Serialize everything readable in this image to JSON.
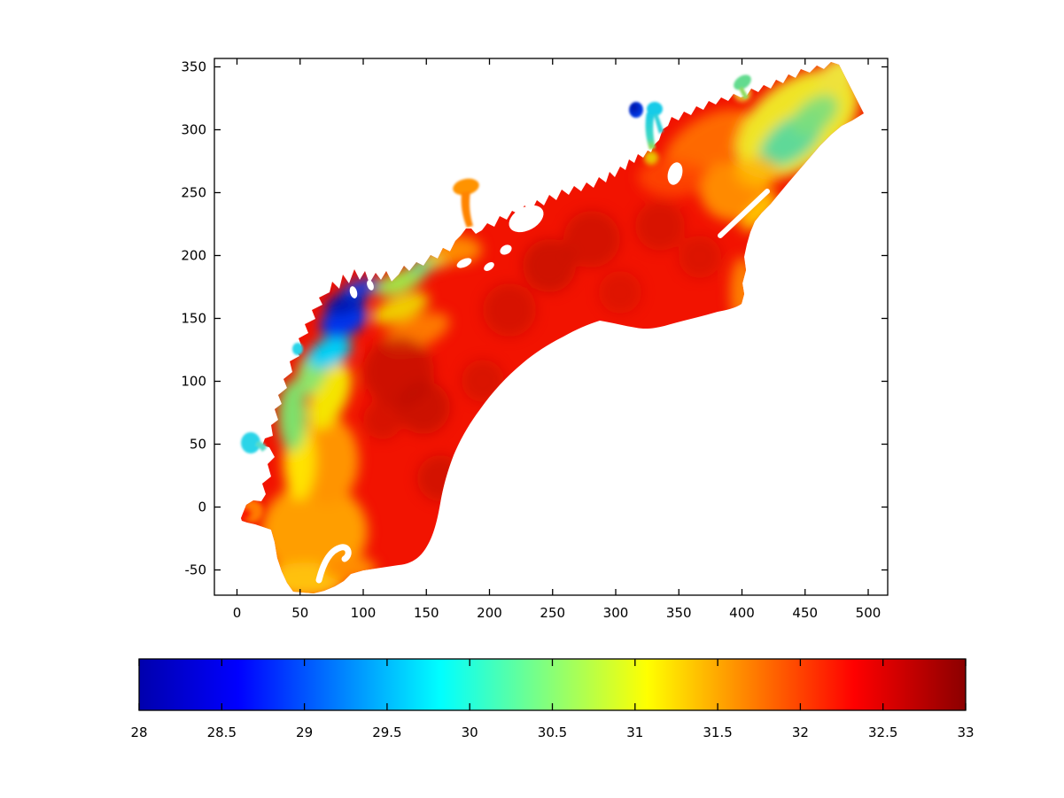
{
  "figure": {
    "background": "#ffffff",
    "kind": "matlab-style filled contour map with horizontal colorbar"
  },
  "chart_data": {
    "type": "heatmap",
    "title": "",
    "xlabel": "",
    "ylabel": "",
    "grid": false,
    "xlim": [
      -18,
      515
    ],
    "ylim": [
      -70,
      356
    ],
    "x_tick_labels": [
      "0",
      "50",
      "100",
      "150",
      "200",
      "250",
      "300",
      "350",
      "400",
      "450",
      "500"
    ],
    "y_tick_labels": [
      "350",
      "300",
      "250",
      "200",
      "150",
      "100",
      "50",
      "0",
      "-50"
    ],
    "colormap": "jet",
    "colorbar": {
      "orientation": "horizontal",
      "min": 28,
      "max": 33,
      "tick_labels": [
        "28",
        "28.5",
        "29",
        "29.5",
        "30",
        "30.5",
        "31",
        "31.5",
        "32",
        "32.5",
        "33"
      ],
      "gradient_stops": [
        {
          "pos": 0.0,
          "color": "#0000AD"
        },
        {
          "pos": 0.12,
          "color": "#0000FF"
        },
        {
          "pos": 0.365,
          "color": "#00FFFF"
        },
        {
          "pos": 0.615,
          "color": "#FFFF00"
        },
        {
          "pos": 0.865,
          "color": "#FF0000"
        },
        {
          "pos": 1.0,
          "color": "#8B0000"
        }
      ]
    },
    "field_samples": [
      {
        "x": 82,
        "y": 153,
        "value": 28.4,
        "note": "dark blue patch on NW shore"
      },
      {
        "x": 70,
        "y": 128,
        "value": 29.6,
        "note": "cyan fringe below blue patch"
      },
      {
        "x": 55,
        "y": 95,
        "value": 30.3,
        "note": "green band along west shore"
      },
      {
        "x": 50,
        "y": 62,
        "value": 31.0,
        "note": "yellow band along west shore"
      },
      {
        "x": 10,
        "y": 50,
        "value": 29.9,
        "note": "isolated cyan pond on west shore"
      },
      {
        "x": 6,
        "y": -4,
        "value": 32.3,
        "note": "small bright red spot at SW tip"
      },
      {
        "x": 55,
        "y": -55,
        "value": 31.4,
        "note": "orange-yellow lower lobe"
      },
      {
        "x": 130,
        "y": 110,
        "value": 32.8,
        "note": "dark red core of west basin"
      },
      {
        "x": 150,
        "y": 80,
        "value": 32.7,
        "note": "dark red core"
      },
      {
        "x": 250,
        "y": 175,
        "value": 32.5,
        "note": "red central basin"
      },
      {
        "x": 300,
        "y": 205,
        "value": 32.4,
        "note": "red eastern basin"
      },
      {
        "x": 181,
        "y": 254,
        "value": 31.7,
        "note": "orange pond on north shore"
      },
      {
        "x": 316,
        "y": 315,
        "value": 28.6,
        "note": "small blue pond, north inlet"
      },
      {
        "x": 332,
        "y": 316,
        "value": 29.8,
        "note": "small cyan pond, north inlet"
      },
      {
        "x": 400,
        "y": 337,
        "value": 30.2,
        "note": "green pond above NE arm"
      },
      {
        "x": 437,
        "y": 294,
        "value": 30.3,
        "note": "green patch inside NE arm"
      },
      {
        "x": 470,
        "y": 330,
        "value": 31.2,
        "note": "yellow NE arm near open tip"
      },
      {
        "x": 395,
        "y": 262,
        "value": 31.6,
        "note": "orange junction of NE arm"
      },
      {
        "x": 410,
        "y": 240,
        "value": 31.3,
        "note": "yellow barrier strip"
      },
      {
        "x": 350,
        "y": 140,
        "value": 32.4,
        "note": "red along smooth ocean boundary"
      }
    ]
  }
}
